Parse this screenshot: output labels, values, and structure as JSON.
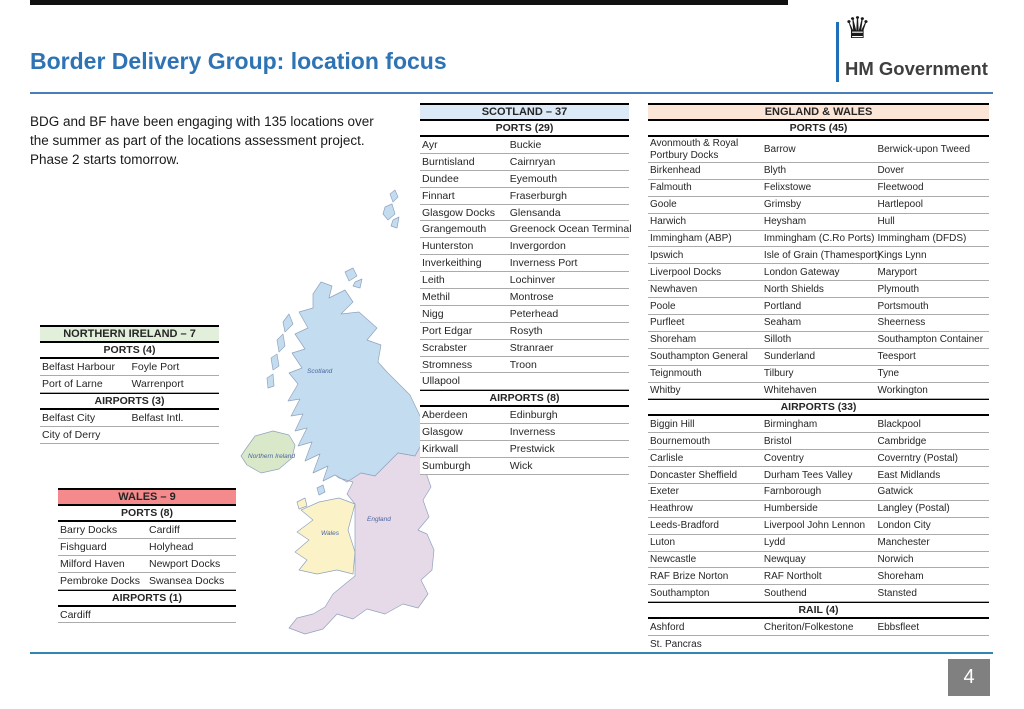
{
  "slide": {
    "title": "Border Delivery Group: location focus",
    "intro": "BDG and BF have been engaging with 135 locations over the summer as part of the locations assessment project. Phase 2 starts tomorrow.",
    "page_number": "4"
  },
  "logo": {
    "text": "HM Government",
    "crown_icon": "♛"
  },
  "colors": {
    "title_blue": "#2E74B5",
    "header_rule": "#4A7EBB",
    "logo_bar": "#1D70B8",
    "footer_line": "#2E86B5",
    "page_badge_bg": "#808080",
    "scotland_header_bg": "#DCE9F6",
    "england_wales_header_bg": "#FBE5D6",
    "northern_ireland_header_bg": "#E2EFDA",
    "wales_header_bg": "#F48A8C",
    "map_scotland": "#C4DCF0",
    "map_england": "#E6D9E8",
    "map_wales": "#FBF2C8",
    "map_northern_ireland": "#D9E8C9"
  },
  "map": {
    "labels": {
      "scotland": "Scotland",
      "northern_ireland": "Northern Ireland",
      "wales": "Wales",
      "england": "England"
    }
  },
  "tables": {
    "scotland": {
      "title": "SCOTLAND – 37",
      "header_bg": "#DCE9F6",
      "sections": [
        {
          "header": "PORTS (29)",
          "rows": [
            [
              "Ayr",
              "Buckie"
            ],
            [
              "Burntisland",
              "Cairnryan"
            ],
            [
              "Dundee",
              "Eyemouth"
            ],
            [
              "Finnart",
              "Fraserburgh"
            ],
            [
              "Glasgow Docks",
              "Glensanda"
            ],
            [
              "Grangemouth",
              "Greenock Ocean Terminal"
            ],
            [
              "Hunterston",
              "Invergordon"
            ],
            [
              "Inverkeithing",
              "Inverness Port"
            ],
            [
              "Leith",
              "Lochinver"
            ],
            [
              "Methil",
              "Montrose"
            ],
            [
              "Nigg",
              "Peterhead"
            ],
            [
              "Port Edgar",
              "Rosyth"
            ],
            [
              "Scrabster",
              "Stranraer"
            ],
            [
              "Stromness",
              "Troon"
            ],
            [
              "Ullapool",
              ""
            ]
          ]
        },
        {
          "header": "AIRPORTS (8)",
          "rows": [
            [
              "Aberdeen",
              "Edinburgh"
            ],
            [
              "Glasgow",
              "Inverness"
            ],
            [
              "Kirkwall",
              "Prestwick"
            ],
            [
              "Sumburgh",
              "Wick"
            ]
          ]
        }
      ]
    },
    "england_wales": {
      "title": "ENGLAND & WALES",
      "header_bg": "#FBE5D6",
      "sections": [
        {
          "header": "PORTS (45)",
          "rows": [
            [
              "Avonmouth & Royal Portbury Docks",
              "Barrow",
              "Berwick-upon Tweed"
            ],
            [
              "Birkenhead",
              "Blyth",
              "Dover"
            ],
            [
              "Falmouth",
              "Felixstowe",
              "Fleetwood"
            ],
            [
              "Goole",
              "Grimsby",
              "Hartlepool"
            ],
            [
              "Harwich",
              "Heysham",
              "Hull"
            ],
            [
              "Immingham (ABP)",
              "Immingham (C.Ro Ports)",
              "Immingham (DFDS)"
            ],
            [
              "Ipswich",
              "Isle of Grain (Thamesport)",
              "Kings Lynn"
            ],
            [
              "Liverpool Docks",
              "London Gateway",
              "Maryport"
            ],
            [
              "Newhaven",
              "North Shields",
              "Plymouth"
            ],
            [
              "Poole",
              "Portland",
              "Portsmouth"
            ],
            [
              "Purfleet",
              "Seaham",
              "Sheerness"
            ],
            [
              "Shoreham",
              "Silloth",
              "Southampton Container"
            ],
            [
              "Southampton General",
              "Sunderland",
              "Teesport"
            ],
            [
              "Teignmouth",
              "Tilbury",
              "Tyne"
            ],
            [
              "Whitby",
              "Whitehaven",
              "Workington"
            ]
          ]
        },
        {
          "header": "AIRPORTS (33)",
          "rows": [
            [
              "Biggin Hill",
              "Birmingham",
              "Blackpool"
            ],
            [
              "Bournemouth",
              "Bristol",
              "Cambridge"
            ],
            [
              "Carlisle",
              "Coventry",
              "Coverntry (Postal)"
            ],
            [
              "Doncaster Sheffield",
              "Durham Tees Valley",
              "East Midlands"
            ],
            [
              "Exeter",
              "Farnborough",
              "Gatwick"
            ],
            [
              "Heathrow",
              "Humberside",
              "Langley (Postal)"
            ],
            [
              "Leeds-Bradford",
              "Liverpool John Lennon",
              "London City"
            ],
            [
              "Luton",
              "Lydd",
              "Manchester"
            ],
            [
              "Newcastle",
              "Newquay",
              "Norwich"
            ],
            [
              "RAF Brize Norton",
              "RAF Northolt",
              "Shoreham"
            ],
            [
              "Southampton",
              "Southend",
              "Stansted"
            ]
          ]
        },
        {
          "header": "RAIL (4)",
          "rows": [
            [
              "Ashford",
              "Cheriton/Folkestone",
              "Ebbsfleet"
            ],
            [
              "St. Pancras",
              "",
              ""
            ]
          ]
        }
      ]
    },
    "northern_ireland": {
      "title": "NORTHERN IRELAND – 7",
      "header_bg": "#E2EFDA",
      "sections": [
        {
          "header": "PORTS (4)",
          "rows": [
            [
              "Belfast Harbour",
              "Foyle Port"
            ],
            [
              "Port of Larne",
              "Warrenport"
            ]
          ]
        },
        {
          "header": "AIRPORTS (3)",
          "rows": [
            [
              "Belfast City",
              "Belfast Intl."
            ],
            [
              "City of Derry",
              ""
            ]
          ]
        }
      ]
    },
    "wales": {
      "title": "WALES – 9",
      "header_bg": "#F48A8C",
      "sections": [
        {
          "header": "PORTS (8)",
          "rows": [
            [
              "Barry Docks",
              "Cardiff"
            ],
            [
              "Fishguard",
              "Holyhead"
            ],
            [
              "Milford Haven",
              "Newport Docks"
            ],
            [
              "Pembroke Docks",
              "Swansea Docks"
            ]
          ]
        },
        {
          "header": "AIRPORTS (1)",
          "rows": [
            [
              "Cardiff",
              ""
            ]
          ]
        }
      ]
    }
  }
}
